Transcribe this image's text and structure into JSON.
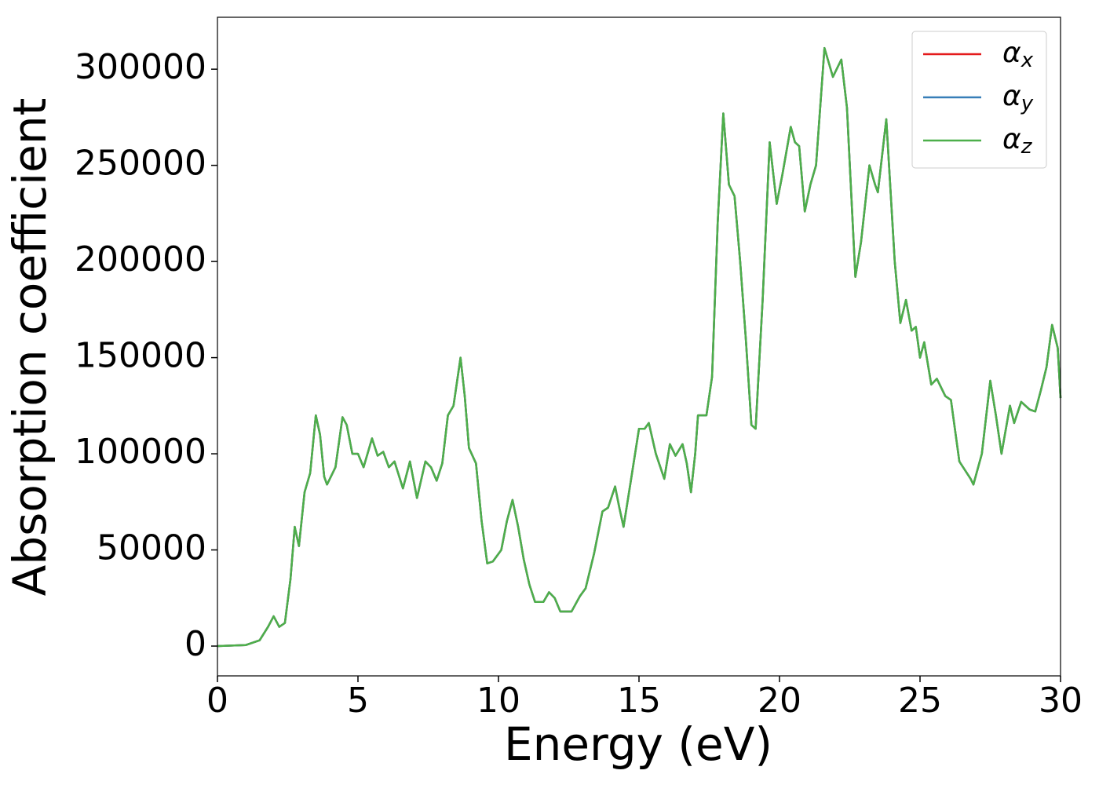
{
  "chart_data": {
    "type": "line",
    "xlabel": "Energy (eV)",
    "ylabel": "Absorption coefficient",
    "x": [
      0,
      1,
      1.5,
      1.8,
      2.0,
      2.2,
      2.4,
      2.6,
      2.75,
      2.9,
      3.1,
      3.3,
      3.5,
      3.65,
      3.8,
      3.9,
      4.2,
      4.45,
      4.6,
      4.8,
      5.0,
      5.2,
      5.5,
      5.7,
      5.9,
      6.1,
      6.3,
      6.6,
      6.85,
      7.1,
      7.4,
      7.6,
      7.8,
      8.0,
      8.2,
      8.4,
      8.65,
      8.8,
      8.95,
      9.2,
      9.4,
      9.6,
      9.8,
      10.1,
      10.3,
      10.5,
      10.7,
      10.9,
      11.1,
      11.3,
      11.6,
      11.8,
      12.0,
      12.2,
      12.6,
      12.9,
      13.1,
      13.4,
      13.7,
      13.9,
      14.15,
      14.3,
      14.45,
      14.7,
      15.0,
      15.2,
      15.35,
      15.6,
      15.9,
      16.1,
      16.3,
      16.55,
      16.7,
      16.85,
      17.0,
      17.1,
      17.4,
      17.6,
      17.8,
      18.0,
      18.2,
      18.4,
      18.6,
      18.8,
      19.0,
      19.15,
      19.4,
      19.65,
      19.9,
      20.1,
      20.4,
      20.55,
      20.7,
      20.9,
      21.1,
      21.3,
      21.6,
      21.9,
      22.2,
      22.4,
      22.7,
      22.9,
      23.2,
      23.4,
      23.5,
      23.8,
      24.1,
      24.3,
      24.5,
      24.7,
      24.85,
      25.0,
      25.15,
      25.4,
      25.6,
      25.9,
      26.1,
      26.4,
      26.8,
      26.9,
      27.2,
      27.5,
      27.7,
      27.9,
      28.2,
      28.35,
      28.6,
      28.9,
      29.1,
      29.3,
      29.5,
      29.7,
      29.9,
      30.0
    ],
    "series": [
      {
        "name": "αx",
        "color": "#e41a1c",
        "values": [
          0,
          500,
          3000,
          10000,
          15500,
          10000,
          12000,
          35000,
          62000,
          52000,
          80000,
          90000,
          120000,
          110000,
          88000,
          84000,
          93000,
          119000,
          115000,
          100000,
          100000,
          93000,
          108000,
          99000,
          101000,
          93000,
          96000,
          82000,
          96000,
          77000,
          96000,
          93000,
          86000,
          95000,
          120000,
          125000,
          150000,
          130000,
          103000,
          95000,
          65000,
          43000,
          44000,
          50000,
          65000,
          76000,
          62000,
          45000,
          32000,
          23000,
          23000,
          28000,
          25000,
          18000,
          18000,
          26000,
          30000,
          48000,
          70000,
          72000,
          83000,
          72000,
          62000,
          85000,
          113000,
          113000,
          116000,
          100000,
          87000,
          105000,
          99000,
          105000,
          95000,
          80000,
          100000,
          120000,
          120000,
          140000,
          220000,
          277000,
          240000,
          234000,
          200000,
          160000,
          115000,
          113000,
          180000,
          262000,
          230000,
          245000,
          270000,
          262000,
          260000,
          226000,
          240000,
          250000,
          311000,
          296000,
          305000,
          280000,
          192000,
          210000,
          250000,
          240000,
          236000,
          274000,
          200000,
          168000,
          180000,
          164000,
          166000,
          150000,
          158000,
          136000,
          139000,
          130000,
          128000,
          96000,
          87000,
          84000,
          100000,
          138000,
          120000,
          100000,
          125000,
          116000,
          127000,
          123000,
          122000,
          133000,
          145000,
          167000,
          155000,
          129000
        ]
      },
      {
        "name": "αy",
        "color": "#377eb8",
        "values": [
          0,
          500,
          3000,
          10000,
          15500,
          10000,
          12000,
          35000,
          62000,
          52000,
          80000,
          90000,
          120000,
          110000,
          88000,
          84000,
          93000,
          119000,
          115000,
          100000,
          100000,
          93000,
          108000,
          99000,
          101000,
          93000,
          96000,
          82000,
          96000,
          77000,
          96000,
          93000,
          86000,
          95000,
          120000,
          125000,
          150000,
          130000,
          103000,
          95000,
          65000,
          43000,
          44000,
          50000,
          65000,
          76000,
          62000,
          45000,
          32000,
          23000,
          23000,
          28000,
          25000,
          18000,
          18000,
          26000,
          30000,
          48000,
          70000,
          72000,
          83000,
          72000,
          62000,
          85000,
          113000,
          113000,
          116000,
          100000,
          87000,
          105000,
          99000,
          105000,
          95000,
          80000,
          100000,
          120000,
          120000,
          140000,
          220000,
          277000,
          240000,
          234000,
          200000,
          160000,
          115000,
          113000,
          180000,
          262000,
          230000,
          245000,
          270000,
          262000,
          260000,
          226000,
          240000,
          250000,
          311000,
          296000,
          305000,
          280000,
          192000,
          210000,
          250000,
          240000,
          236000,
          274000,
          200000,
          168000,
          180000,
          164000,
          166000,
          150000,
          158000,
          136000,
          139000,
          130000,
          128000,
          96000,
          87000,
          84000,
          100000,
          138000,
          120000,
          100000,
          125000,
          116000,
          127000,
          123000,
          122000,
          133000,
          145000,
          167000,
          155000,
          129000
        ]
      },
      {
        "name": "αz",
        "color": "#4daf4a",
        "values": [
          0,
          500,
          3000,
          10000,
          15500,
          10000,
          12000,
          35000,
          62000,
          52000,
          80000,
          90000,
          120000,
          110000,
          88000,
          84000,
          93000,
          119000,
          115000,
          100000,
          100000,
          93000,
          108000,
          99000,
          101000,
          93000,
          96000,
          82000,
          96000,
          77000,
          96000,
          93000,
          86000,
          95000,
          120000,
          125000,
          150000,
          130000,
          103000,
          95000,
          65000,
          43000,
          44000,
          50000,
          65000,
          76000,
          62000,
          45000,
          32000,
          23000,
          23000,
          28000,
          25000,
          18000,
          18000,
          26000,
          30000,
          48000,
          70000,
          72000,
          83000,
          72000,
          62000,
          85000,
          113000,
          113000,
          116000,
          100000,
          87000,
          105000,
          99000,
          105000,
          95000,
          80000,
          100000,
          120000,
          120000,
          140000,
          220000,
          277000,
          240000,
          234000,
          200000,
          160000,
          115000,
          113000,
          180000,
          262000,
          230000,
          245000,
          270000,
          262000,
          260000,
          226000,
          240000,
          250000,
          311000,
          296000,
          305000,
          280000,
          192000,
          210000,
          250000,
          240000,
          236000,
          274000,
          200000,
          168000,
          180000,
          164000,
          166000,
          150000,
          158000,
          136000,
          139000,
          130000,
          128000,
          96000,
          87000,
          84000,
          100000,
          138000,
          120000,
          100000,
          125000,
          116000,
          127000,
          123000,
          122000,
          133000,
          145000,
          167000,
          155000,
          129000
        ]
      }
    ],
    "xlim": [
      0,
      30
    ],
    "xticks": [
      0,
      5,
      10,
      15,
      20,
      25,
      30
    ],
    "ylim": [
      -15500,
      327000
    ],
    "yticks": [
      0,
      50000,
      100000,
      150000,
      200000,
      250000,
      300000
    ],
    "legend": "upper right",
    "grid": false
  }
}
